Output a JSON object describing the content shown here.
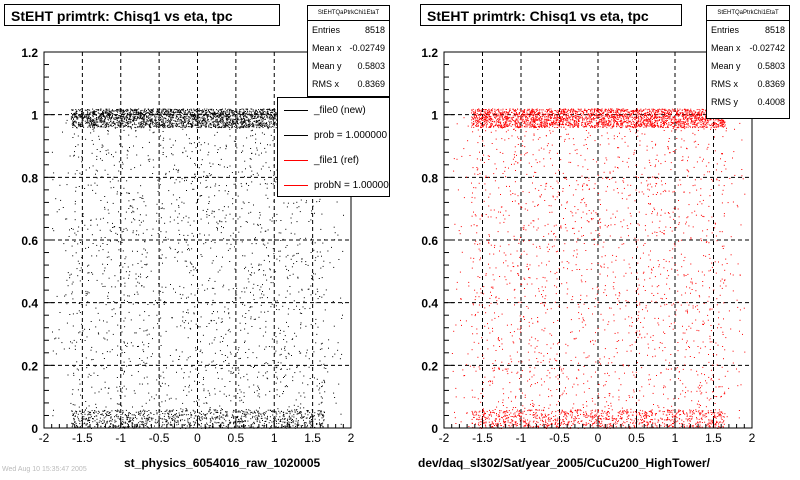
{
  "chart_data": [
    {
      "type": "scatter",
      "title": "StEHT primtrk: Chisq1 vs eta, tpc",
      "xlabel": "st_physics_6054016_raw_1020005",
      "ylabel": "",
      "xlim": [
        -2,
        2
      ],
      "ylim": [
        0,
        1.2
      ],
      "xticks": [
        "-2",
        "-1.5",
        "-1",
        "-0.5",
        "0",
        "0.5",
        "1",
        "1.5",
        "2"
      ],
      "yticks": [
        "0",
        "0.2",
        "0.4",
        "0.6",
        "0.8",
        "1",
        "1.2"
      ],
      "grid": true,
      "marker_color": "#000000",
      "density": {
        "eta_range": [
          -1.65,
          1.65
        ],
        "dense_bands": [
          [
            0.96,
            1.02
          ],
          [
            0.0,
            0.06
          ]
        ]
      },
      "stats": {
        "name": "StEHTQaPtrkChi1EtaT",
        "rows": [
          {
            "label": "Entries",
            "value": "8518"
          },
          {
            "label": "Mean x",
            "value": "-0.02749"
          },
          {
            "label": "Mean y",
            "value": "0.5803"
          },
          {
            "label": "RMS x",
            "value": "0.8369"
          }
        ]
      },
      "legend": {
        "placement": "top-right",
        "entries": [
          {
            "label": "_file0 (new)",
            "color": "#000000"
          },
          {
            "label": "prob = 1.000000",
            "color": "#000000"
          },
          {
            "label": "_file1 (ref)",
            "color": "#ff0000"
          },
          {
            "label": "probN = 1.000000",
            "color": "#ff0000"
          }
        ]
      }
    },
    {
      "type": "scatter",
      "title": "StEHT primtrk: Chisq1 vs eta, tpc",
      "xlabel": "dev/daq_sl302/Sat/year_2005/CuCu200_HighTower/",
      "ylabel": "",
      "xlim": [
        -2,
        2
      ],
      "ylim": [
        0,
        1.2
      ],
      "xticks": [
        "-2",
        "-1.5",
        "-1",
        "-0.5",
        "0",
        "0.5",
        "1",
        "1.5",
        "2"
      ],
      "yticks": [
        "0",
        "0.2",
        "0.4",
        "0.6",
        "0.8",
        "1",
        "1.2"
      ],
      "grid": true,
      "marker_color": "#ff0000",
      "density": {
        "eta_range": [
          -1.65,
          1.65
        ],
        "dense_bands": [
          [
            0.96,
            1.02
          ],
          [
            0.0,
            0.06
          ]
        ]
      },
      "stats": {
        "name": "StEHTQaPtrkChi1EtaT",
        "rows": [
          {
            "label": "Entries",
            "value": "8518"
          },
          {
            "label": "Mean x",
            "value": "-0.02742"
          },
          {
            "label": "Mean y",
            "value": "0.5803"
          },
          {
            "label": "RMS x",
            "value": "0.8369"
          },
          {
            "label": "RMS y",
            "value": "0.4008"
          }
        ]
      }
    }
  ],
  "footer_faint": "Wed Aug 10 15:35:47 2005"
}
